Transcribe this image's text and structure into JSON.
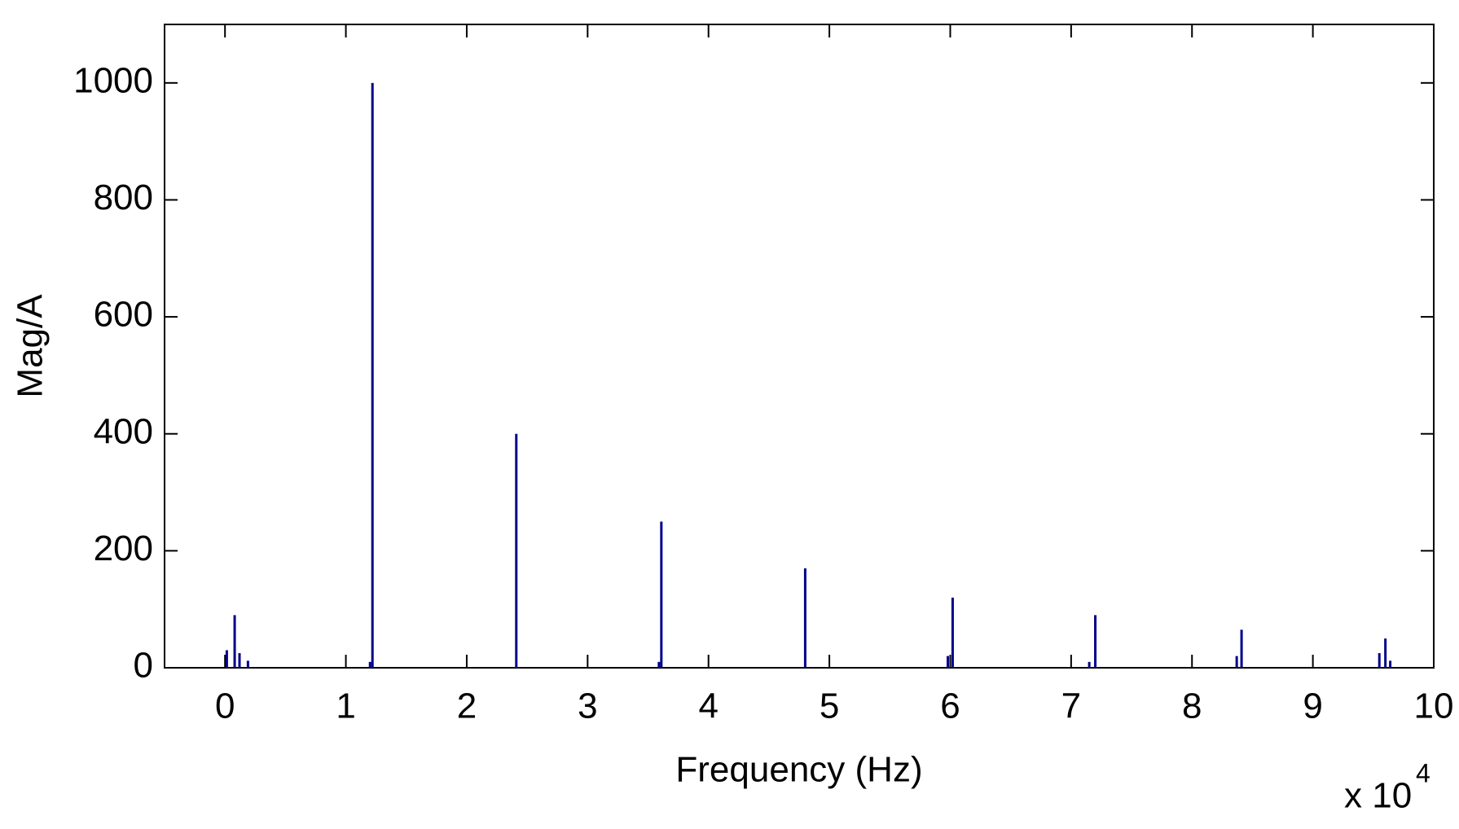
{
  "chart_data": {
    "type": "stem",
    "color": "#00008b",
    "x_label": "Frequency (Hz)",
    "y_label": "Mag/A",
    "x_multiplier": {
      "base": "x 10",
      "exponent": "4"
    },
    "x": [
      0.015,
      0.08,
      0.12,
      0.19,
      1.2,
      1.22,
      2.41,
      3.59,
      3.61,
      4.8,
      5.98,
      6.02,
      7.15,
      7.2,
      8.37,
      8.41,
      9.55,
      9.6,
      9.64
    ],
    "values": [
      30,
      90,
      25,
      12,
      10,
      1000,
      400,
      10,
      250,
      170,
      20,
      120,
      10,
      90,
      20,
      65,
      25,
      50,
      12
    ],
    "xlim": [
      -0.5,
      10
    ],
    "xticks": [
      0,
      1,
      2,
      3,
      4,
      5,
      6,
      7,
      8,
      9,
      10
    ],
    "ylim": [
      0,
      1100
    ],
    "yticks": [
      0,
      200,
      400,
      600,
      800,
      1000
    ],
    "grid": false
  }
}
